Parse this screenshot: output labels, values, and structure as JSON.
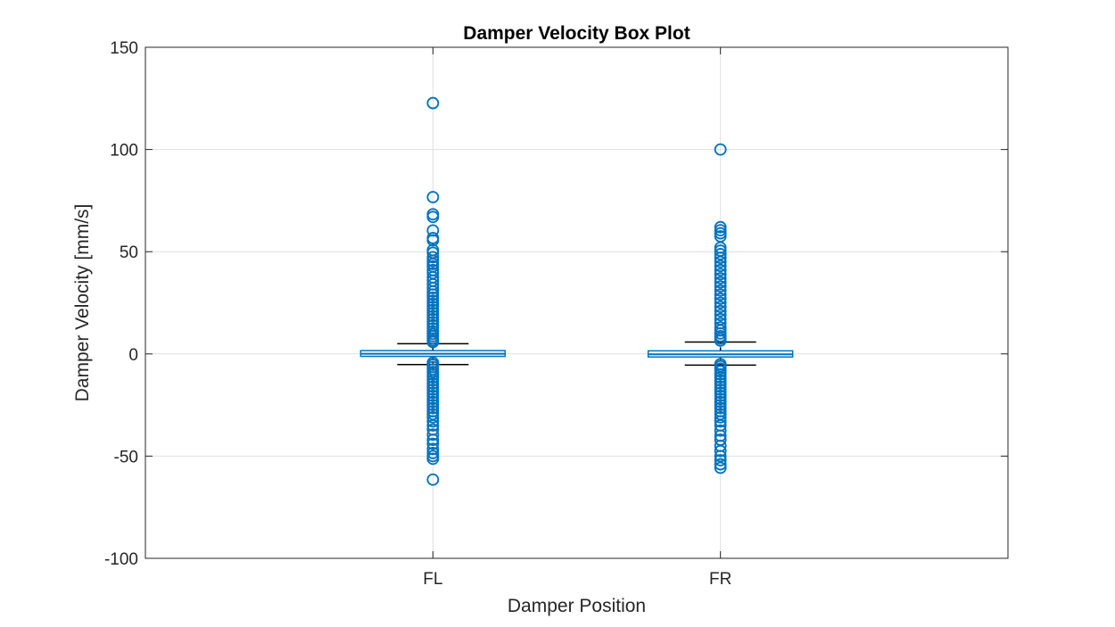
{
  "chart_data": {
    "type": "box",
    "title": "Damper Velocity Box Plot",
    "xlabel": "Damper Position",
    "ylabel": "Damper Velocity [mm/s]",
    "categories": [
      "FL",
      "FR"
    ],
    "ylim": [
      -100,
      150
    ],
    "yticks": [
      -100,
      -50,
      0,
      50,
      100,
      150
    ],
    "ytick_labels": [
      "-100",
      "-50",
      "0",
      "50",
      "100",
      "150"
    ],
    "grid": true,
    "colors": {
      "box": "#0072BD",
      "whisker": "#000000",
      "grid": "#DFDFDF",
      "axis": "#262626"
    },
    "series": [
      {
        "category": "FL",
        "q1": -1.2,
        "median": 0.1,
        "q3": 1.6,
        "whisker_low": -5.2,
        "whisker_high": 5.0,
        "outliers": [
          122.7,
          76.7,
          68.3,
          67.0,
          60.4,
          56.7,
          55.6,
          50.8,
          49.5,
          47.3,
          45.5,
          44.0,
          42.8,
          41.0,
          39.5,
          37.5,
          35.8,
          34.0,
          32.2,
          30.5,
          29.0,
          27.5,
          26.0,
          24.5,
          23.0,
          21.5,
          20.0,
          18.5,
          17.0,
          15.5,
          14.0,
          12.5,
          11.0,
          9.8,
          8.7,
          7.6,
          6.6,
          5.8,
          -4.3,
          -5.3,
          -6.4,
          -7.6,
          -8.8,
          -10.1,
          -11.5,
          -13.0,
          -14.5,
          -16.0,
          -17.5,
          -19.0,
          -20.5,
          -22.0,
          -23.5,
          -25.0,
          -26.5,
          -28.0,
          -29.5,
          -31.0,
          -33.0,
          -35.0,
          -37.0,
          -39.5,
          -42.0,
          -44.0,
          -46.5,
          -48.5,
          -50.0,
          -51.3,
          -61.5
        ]
      },
      {
        "category": "FR",
        "q1": -1.5,
        "median": -0.2,
        "q3": 1.5,
        "whisker_low": -5.5,
        "whisker_high": 5.8,
        "outliers": [
          100.0,
          62.0,
          60.5,
          59.0,
          57.5,
          52.0,
          50.5,
          48.8,
          47.0,
          45.0,
          43.0,
          41.0,
          39.0,
          37.0,
          35.0,
          33.0,
          31.0,
          29.0,
          27.0,
          25.0,
          23.0,
          21.0,
          19.0,
          17.0,
          15.0,
          13.0,
          11.5,
          10.0,
          8.7,
          7.5,
          6.5,
          -5.0,
          -6.0,
          -7.2,
          -8.5,
          -10.0,
          -11.5,
          -13.0,
          -14.5,
          -16.0,
          -17.5,
          -19.0,
          -20.5,
          -22.0,
          -23.5,
          -25.0,
          -26.5,
          -28.0,
          -29.5,
          -31.0,
          -33.0,
          -35.0,
          -37.5,
          -40.0,
          -42.0,
          -45.0,
          -47.5,
          -50.0,
          -52.0,
          -54.0,
          -55.7
        ]
      }
    ]
  }
}
